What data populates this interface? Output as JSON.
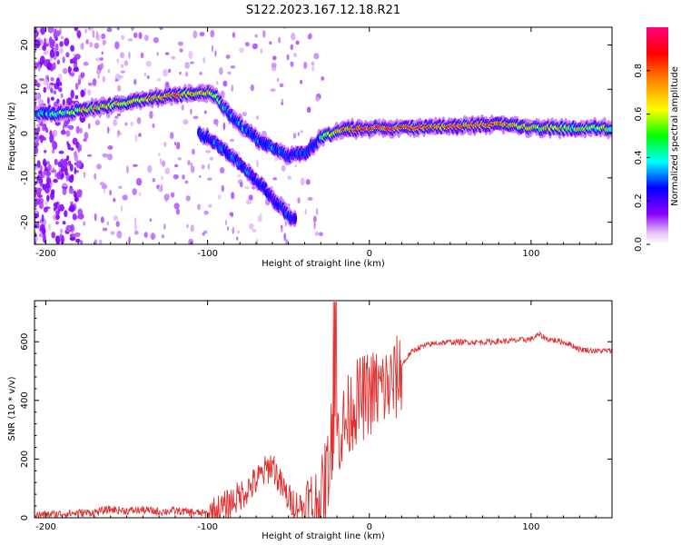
{
  "title": "S122.2023.167.12.18.R21",
  "colors": {
    "spectral_low": "#e6c8f5",
    "snr_line": "#e03030",
    "axis": "#000000"
  },
  "chart_data": [
    {
      "type": "heatmap",
      "title": "S122.2023.167.12.18.R21",
      "xlabel": "Height of straight line (km)",
      "ylabel": "Frequency (Hz)",
      "xlim": [
        -207,
        150
      ],
      "ylim": [
        -25,
        24
      ],
      "xticks": [
        -200,
        -100,
        0,
        100
      ],
      "yticks": [
        -20,
        -10,
        0,
        10,
        20
      ],
      "colorbar": {
        "label": "Normalized spectral amplitude",
        "range": [
          0,
          1
        ],
        "ticks": [
          "0.0",
          "0.2",
          "0.4",
          "0.6",
          "0.8"
        ],
        "tick_values": [
          0,
          0.2,
          0.4,
          0.6,
          0.8
        ],
        "colormap": "hsv-like (violet, blue, cyan, green, yellow, orange, red, magenta)"
      },
      "ridges": [
        {
          "name": "",
          "points": [
            [
              -205,
              4.5
            ],
            [
              -190,
              4.6
            ],
            [
              -175,
              5.4
            ],
            [
              -160,
              6.3
            ],
            [
              -145,
              7.4
            ],
            [
              -130,
              8.2
            ],
            [
              -120,
              8.6
            ],
            [
              -110,
              8.9
            ],
            [
              -100,
              9.1
            ],
            [
              -95,
              8.5
            ],
            [
              -90,
              6.0
            ],
            [
              -80,
              2.0
            ],
            [
              -70,
              -1.0
            ],
            [
              -60,
              -3.0
            ],
            [
              -50,
              -5.0
            ],
            [
              -40,
              -4.5
            ],
            [
              -30,
              -1.0
            ],
            [
              -20,
              0.5
            ],
            [
              -10,
              1.0
            ],
            [
              0,
              1.2
            ],
            [
              10,
              1.2
            ],
            [
              50,
              1.5
            ],
            [
              80,
              2.2
            ],
            [
              100,
              1.3
            ],
            [
              150,
              1.2
            ]
          ],
          "amplitude": [
            0.4,
            0.55,
            0.65,
            0.7,
            0.72,
            0.75,
            0.8,
            0.72,
            0.7,
            0.6,
            0.45,
            0.4,
            0.35,
            0.35,
            0.3,
            0.3,
            0.4,
            0.7,
            0.85,
            0.85,
            0.9,
            0.8,
            0.85,
            0.65,
            0.6
          ]
        },
        {
          "name": "",
          "points": [
            [
              -105,
              0.0
            ],
            [
              -95,
              -2.0
            ],
            [
              -85,
              -5.0
            ],
            [
              -75,
              -8.5
            ],
            [
              -65,
              -12.5
            ],
            [
              -55,
              -16.5
            ],
            [
              -45,
              -20.0
            ]
          ],
          "amplitude": [
            0.3,
            0.35,
            0.35,
            0.33,
            0.3,
            0.3,
            0.28
          ]
        }
      ]
    },
    {
      "type": "line",
      "xlabel": "Height of straight line (km)",
      "ylabel": "SNR (10 * v/v)",
      "xlim": [
        -207,
        150
      ],
      "ylim": [
        0,
        740
      ],
      "xticks": [
        -200,
        -100,
        0,
        100
      ],
      "yticks": [
        0,
        200,
        400,
        600
      ],
      "series": [
        {
          "name": "",
          "x": [
            -207,
            -190,
            -170,
            -160,
            -150,
            -140,
            -130,
            -120,
            -110,
            -100,
            -90,
            -80,
            -70,
            -60,
            -55,
            -50,
            -45,
            -40,
            -35,
            -30,
            -25,
            -22,
            -20,
            -15,
            -10,
            -5,
            0,
            5,
            10,
            15,
            20,
            25,
            30,
            40,
            50,
            60,
            70,
            80,
            90,
            100,
            105,
            110,
            120,
            125,
            130,
            140,
            150
          ],
          "y": [
            10,
            15,
            20,
            30,
            25,
            28,
            22,
            25,
            20,
            15,
            40,
            80,
            130,
            190,
            120,
            70,
            50,
            40,
            45,
            60,
            200,
            350,
            300,
            330,
            400,
            420,
            440,
            450,
            460,
            470,
            520,
            560,
            580,
            595,
            600,
            600,
            600,
            602,
            605,
            610,
            625,
            610,
            600,
            590,
            575,
            570,
            570
          ]
        }
      ]
    }
  ]
}
